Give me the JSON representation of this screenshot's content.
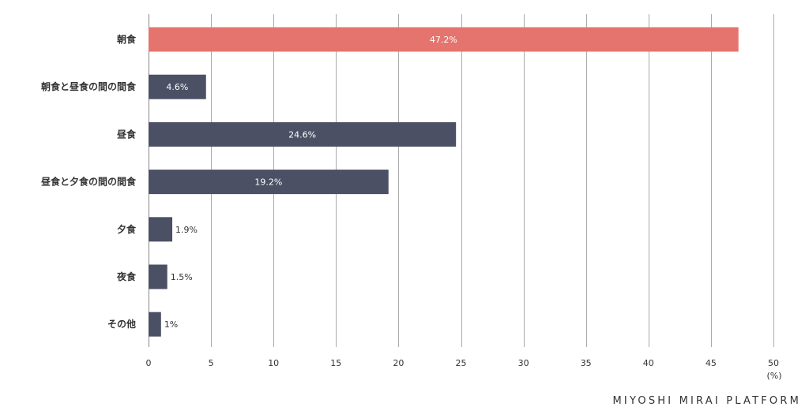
{
  "chart_data": {
    "type": "bar",
    "orientation": "horizontal",
    "categories": [
      "朝食",
      "朝食と昼食の間の間食",
      "昼食",
      "昼食と夕食の間の間食",
      "夕食",
      "夜食",
      "その他"
    ],
    "values": [
      47.2,
      4.6,
      24.6,
      19.2,
      1.9,
      1.5,
      1
    ],
    "value_labels": [
      "47.2%",
      "4.6%",
      "24.6%",
      "19.2%",
      "1.9%",
      "1.5%",
      "1%"
    ],
    "bar_colors": [
      "#e5746e",
      "#4b5064",
      "#4b5064",
      "#4b5064",
      "#4b5064",
      "#4b5064",
      "#4b5064"
    ],
    "xlim": [
      0,
      50
    ],
    "xticks": [
      0,
      5,
      10,
      15,
      20,
      25,
      30,
      35,
      40,
      45,
      50
    ],
    "x_unit": "(%)",
    "grid": true,
    "grid_color": "#aaaaaa"
  },
  "branding": {
    "text": "MIYOSHI MIRAI PLATFORM"
  }
}
